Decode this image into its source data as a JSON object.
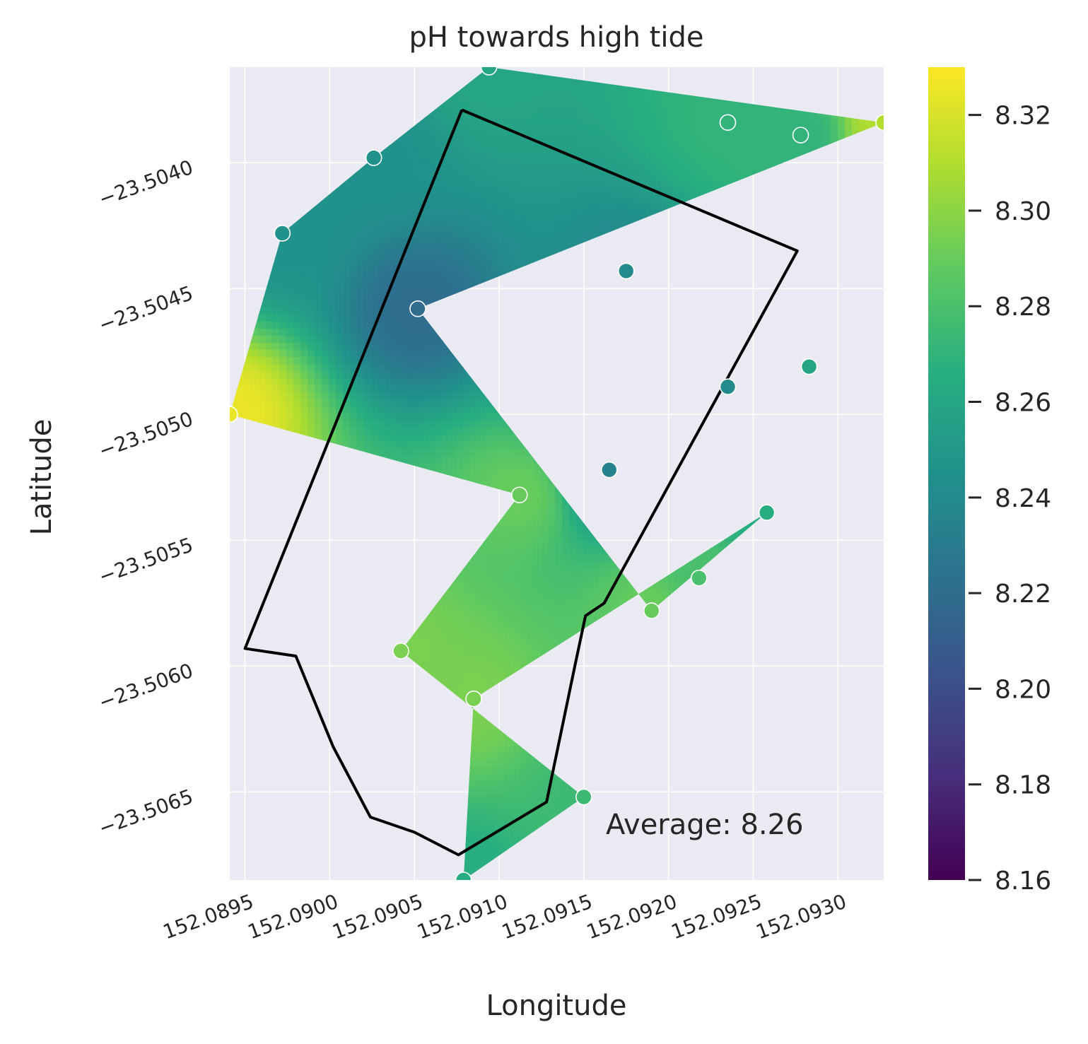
{
  "chart_data": {
    "type": "heatmap",
    "title": "pH towards high tide",
    "xlabel": "Longitude",
    "ylabel": "Latitude",
    "xlim": [
      152.08941,
      152.09327
    ],
    "ylim": [
      -23.50685,
      -23.50362
    ],
    "x_ticks": [
      "152.0895",
      "152.0900",
      "152.0905",
      "152.0910",
      "152.0915",
      "152.0920",
      "152.0925",
      "152.0930"
    ],
    "x_tick_values": [
      152.0895,
      152.09,
      152.0905,
      152.091,
      152.0915,
      152.092,
      152.0925,
      152.093
    ],
    "y_ticks": [
      "−23.5040",
      "−23.5045",
      "−23.5050",
      "−23.5055",
      "−23.5060",
      "−23.5065"
    ],
    "y_tick_values": [
      -23.504,
      -23.5045,
      -23.505,
      -23.5055,
      -23.506,
      -23.5065
    ],
    "grid": true,
    "colormap": "viridis",
    "colorbar": {
      "vmin": 8.16,
      "vmax": 8.33,
      "ticks": [
        "8.16",
        "8.18",
        "8.20",
        "8.22",
        "8.24",
        "8.26",
        "8.28",
        "8.30",
        "8.32"
      ],
      "tick_values": [
        8.16,
        8.18,
        8.2,
        8.22,
        8.24,
        8.26,
        8.28,
        8.3,
        8.32
      ]
    },
    "annotation": "Average: 8.26",
    "points": [
      {
        "lon": 152.09094,
        "lat": -23.50362,
        "ph": 8.26
      },
      {
        "lon": 152.09026,
        "lat": -23.50398,
        "ph": 8.245
      },
      {
        "lon": 152.08972,
        "lat": -23.50428,
        "ph": 8.245
      },
      {
        "lon": 152.09235,
        "lat": -23.50384,
        "ph": 8.27
      },
      {
        "lon": 152.09278,
        "lat": -23.50389,
        "ph": 8.27
      },
      {
        "lon": 152.09327,
        "lat": -23.50384,
        "ph": 8.31
      },
      {
        "lon": 152.09175,
        "lat": -23.50443,
        "ph": 8.24
      },
      {
        "lon": 152.09052,
        "lat": -23.50458,
        "ph": 8.22
      },
      {
        "lon": 152.09283,
        "lat": -23.50481,
        "ph": 8.26
      },
      {
        "lon": 152.09235,
        "lat": -23.50489,
        "ph": 8.24
      },
      {
        "lon": 152.08941,
        "lat": -23.505,
        "ph": 8.325
      },
      {
        "lon": 152.09165,
        "lat": -23.50522,
        "ph": 8.235
      },
      {
        "lon": 152.09112,
        "lat": -23.50532,
        "ph": 8.29
      },
      {
        "lon": 152.09258,
        "lat": -23.50539,
        "ph": 8.265
      },
      {
        "lon": 152.09218,
        "lat": -23.50565,
        "ph": 8.28
      },
      {
        "lon": 152.0919,
        "lat": -23.50578,
        "ph": 8.29
      },
      {
        "lon": 152.09042,
        "lat": -23.50594,
        "ph": 8.295
      },
      {
        "lon": 152.09085,
        "lat": -23.50613,
        "ph": 8.295
      },
      {
        "lon": 152.0915,
        "lat": -23.50652,
        "ph": 8.275
      },
      {
        "lon": 152.09079,
        "lat": -23.50685,
        "ph": 8.265
      }
    ],
    "hull_order": [
      0,
      5,
      7,
      15,
      13,
      17,
      19,
      18,
      16,
      12,
      10,
      2,
      1
    ],
    "boundary": [
      [
        152.09078,
        -23.50379
      ],
      [
        152.09276,
        -23.50435
      ],
      [
        152.09162,
        -23.50575
      ],
      [
        152.09151,
        -23.5058
      ],
      [
        152.09145,
        -23.50599
      ],
      [
        152.09128,
        -23.50654
      ],
      [
        152.09076,
        -23.50675
      ],
      [
        152.0905,
        -23.50666
      ],
      [
        152.09024,
        -23.5066
      ],
      [
        152.09002,
        -23.50632
      ],
      [
        152.0898,
        -23.50596
      ],
      [
        152.0895,
        -23.50593
      ],
      [
        152.09078,
        -23.50379
      ]
    ]
  }
}
